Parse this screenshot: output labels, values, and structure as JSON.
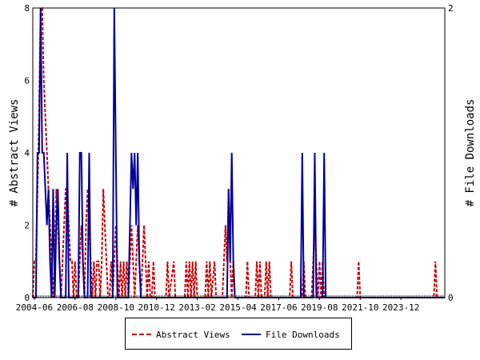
{
  "chart_data": {
    "type": "line",
    "xlabel": "",
    "ylabel_left": "# Abstract Views",
    "ylabel_right": "# File Downloads",
    "ylim_left": [
      0,
      8
    ],
    "ylim_right": [
      0,
      2
    ],
    "x_tick_labels": [
      "2004-06",
      "2006-08",
      "2008-10",
      "2010-12",
      "2013-02",
      "2015-04",
      "2017-06",
      "2019-08",
      "2021-10",
      "2023-12"
    ],
    "y_left_ticks": [
      "0",
      "2",
      "4",
      "6",
      "8"
    ],
    "y_right_ticks": [
      "0",
      "2"
    ],
    "grid": false,
    "legend_position": "bottom-center",
    "x_start": "2004-05",
    "x_end": "2026-04",
    "series": [
      {
        "name": "Abstract Views",
        "axis": "left",
        "style": "dashed",
        "color": "#cc0000",
        "points": [
          [
            "2004-05",
            0
          ],
          [
            "2004-06",
            1
          ],
          [
            "2004-07",
            1
          ],
          [
            "2004-08",
            3
          ],
          [
            "2004-09",
            5
          ],
          [
            "2004-10",
            8
          ],
          [
            "2004-11",
            8
          ],
          [
            "2004-12",
            6
          ],
          [
            "2005-01",
            5
          ],
          [
            "2005-02",
            4
          ],
          [
            "2005-03",
            3
          ],
          [
            "2005-04",
            2
          ],
          [
            "2005-05",
            1
          ],
          [
            "2005-06",
            0
          ],
          [
            "2005-07",
            1
          ],
          [
            "2005-08",
            3
          ],
          [
            "2005-09",
            2
          ],
          [
            "2005-10",
            1
          ],
          [
            "2005-11",
            0
          ],
          [
            "2005-12",
            1
          ],
          [
            "2006-01",
            2
          ],
          [
            "2006-02",
            3
          ],
          [
            "2006-03",
            3
          ],
          [
            "2006-04",
            2
          ],
          [
            "2006-05",
            1
          ],
          [
            "2006-06",
            1
          ],
          [
            "2006-07",
            0
          ],
          [
            "2006-08",
            1
          ],
          [
            "2006-09",
            0
          ],
          [
            "2006-10",
            0
          ],
          [
            "2006-11",
            1
          ],
          [
            "2006-12",
            2
          ],
          [
            "2007-01",
            1
          ],
          [
            "2007-02",
            0
          ],
          [
            "2007-03",
            2
          ],
          [
            "2007-04",
            3
          ],
          [
            "2007-05",
            2
          ],
          [
            "2007-06",
            1
          ],
          [
            "2007-07",
            0
          ],
          [
            "2007-08",
            1
          ],
          [
            "2007-09",
            0
          ],
          [
            "2007-10",
            1
          ],
          [
            "2007-11",
            1
          ],
          [
            "2007-12",
            0
          ],
          [
            "2008-01",
            1
          ],
          [
            "2008-02",
            3
          ],
          [
            "2008-03",
            2
          ],
          [
            "2008-04",
            1
          ],
          [
            "2008-05",
            0
          ],
          [
            "2008-06",
            0
          ],
          [
            "2008-07",
            1
          ],
          [
            "2008-08",
            0
          ],
          [
            "2008-09",
            1
          ],
          [
            "2008-10",
            2
          ],
          [
            "2008-11",
            1
          ],
          [
            "2008-12",
            0
          ],
          [
            "2009-01",
            1
          ],
          [
            "2009-02",
            0
          ],
          [
            "2009-03",
            1
          ],
          [
            "2009-04",
            0
          ],
          [
            "2009-05",
            1
          ],
          [
            "2009-06",
            0
          ],
          [
            "2009-07",
            1
          ],
          [
            "2009-08",
            2
          ],
          [
            "2009-09",
            1
          ],
          [
            "2009-10",
            0
          ],
          [
            "2009-11",
            1
          ],
          [
            "2009-12",
            2
          ],
          [
            "2010-01",
            1
          ],
          [
            "2010-02",
            0
          ],
          [
            "2010-03",
            1
          ],
          [
            "2010-04",
            2
          ],
          [
            "2010-05",
            1
          ],
          [
            "2010-06",
            0
          ],
          [
            "2010-07",
            1
          ],
          [
            "2010-08",
            0
          ],
          [
            "2010-09",
            0
          ],
          [
            "2010-10",
            1
          ],
          [
            "2010-11",
            0
          ],
          [
            "2010-12",
            0
          ],
          [
            "2011-06",
            0
          ],
          [
            "2011-07",
            1
          ],
          [
            "2011-08",
            0
          ],
          [
            "2011-11",
            1
          ],
          [
            "2011-12",
            0
          ],
          [
            "2012-06",
            0
          ],
          [
            "2012-07",
            1
          ],
          [
            "2012-08",
            0
          ],
          [
            "2012-09",
            1
          ],
          [
            "2012-10",
            0
          ],
          [
            "2012-11",
            1
          ],
          [
            "2012-12",
            0
          ],
          [
            "2013-01",
            1
          ],
          [
            "2013-02",
            0
          ],
          [
            "2013-07",
            0
          ],
          [
            "2013-08",
            1
          ],
          [
            "2013-09",
            0
          ],
          [
            "2013-10",
            1
          ],
          [
            "2013-11",
            0
          ],
          [
            "2014-01",
            1
          ],
          [
            "2014-02",
            0
          ],
          [
            "2014-06",
            0
          ],
          [
            "2014-07",
            1
          ],
          [
            "2014-08",
            2
          ],
          [
            "2014-09",
            1
          ],
          [
            "2014-10",
            3
          ],
          [
            "2014-11",
            1
          ],
          [
            "2014-12",
            0
          ],
          [
            "2015-01",
            1
          ],
          [
            "2015-02",
            0
          ],
          [
            "2015-09",
            0
          ],
          [
            "2015-10",
            1
          ],
          [
            "2015-11",
            0
          ],
          [
            "2016-03",
            0
          ],
          [
            "2016-04",
            1
          ],
          [
            "2016-05",
            0
          ],
          [
            "2016-06",
            1
          ],
          [
            "2016-07",
            0
          ],
          [
            "2016-09",
            0
          ],
          [
            "2016-10",
            1
          ],
          [
            "2016-11",
            0
          ],
          [
            "2016-12",
            1
          ],
          [
            "2017-01",
            0
          ],
          [
            "2018-01",
            0
          ],
          [
            "2018-02",
            1
          ],
          [
            "2018-03",
            0
          ],
          [
            "2018-09",
            0
          ],
          [
            "2018-10",
            1
          ],
          [
            "2018-11",
            0
          ],
          [
            "2019-03",
            0
          ],
          [
            "2019-04",
            1
          ],
          [
            "2019-05",
            2
          ],
          [
            "2019-06",
            1
          ],
          [
            "2019-07",
            0
          ],
          [
            "2019-08",
            1
          ],
          [
            "2019-09",
            0
          ],
          [
            "2019-10",
            1
          ],
          [
            "2019-11",
            0
          ],
          [
            "2021-08",
            0
          ],
          [
            "2021-09",
            1
          ],
          [
            "2021-10",
            0
          ],
          [
            "2025-09",
            0
          ],
          [
            "2025-10",
            1
          ],
          [
            "2025-11",
            0
          ],
          [
            "2026-04",
            0
          ]
        ]
      },
      {
        "name": "File Downloads",
        "axis": "right",
        "style": "solid",
        "color": "#000099",
        "points": [
          [
            "2004-05",
            0
          ],
          [
            "2004-07",
            0
          ],
          [
            "2004-08",
            1
          ],
          [
            "2004-09",
            1
          ],
          [
            "2004-10",
            2
          ],
          [
            "2004-11",
            1
          ],
          [
            "2004-12",
            1
          ],
          [
            "2005-01",
            0.75
          ],
          [
            "2005-02",
            0.5
          ],
          [
            "2005-03",
            0.75
          ],
          [
            "2005-04",
            0.25
          ],
          [
            "2005-05",
            0
          ],
          [
            "2005-06",
            0.75
          ],
          [
            "2005-07",
            0
          ],
          [
            "2005-08",
            0.5
          ],
          [
            "2005-09",
            0.75
          ],
          [
            "2005-10",
            0.25
          ],
          [
            "2005-11",
            0
          ],
          [
            "2006-02",
            0
          ],
          [
            "2006-03",
            1
          ],
          [
            "2006-04",
            0
          ],
          [
            "2006-10",
            0
          ],
          [
            "2006-11",
            1
          ],
          [
            "2006-12",
            1
          ],
          [
            "2007-01",
            0.25
          ],
          [
            "2007-02",
            0
          ],
          [
            "2007-04",
            0
          ],
          [
            "2007-05",
            1
          ],
          [
            "2007-06",
            0
          ],
          [
            "2008-08",
            0
          ],
          [
            "2008-09",
            2
          ],
          [
            "2008-10",
            1
          ],
          [
            "2008-11",
            0
          ],
          [
            "2009-06",
            0
          ],
          [
            "2009-07",
            0.5
          ],
          [
            "2009-08",
            1
          ],
          [
            "2009-09",
            0.75
          ],
          [
            "2009-10",
            1
          ],
          [
            "2009-11",
            0.5
          ],
          [
            "2009-12",
            1
          ],
          [
            "2010-01",
            0.25
          ],
          [
            "2010-02",
            0
          ],
          [
            "2014-09",
            0
          ],
          [
            "2014-10",
            0.75
          ],
          [
            "2014-11",
            0.25
          ],
          [
            "2014-12",
            1
          ],
          [
            "2015-01",
            0.25
          ],
          [
            "2015-02",
            0
          ],
          [
            "2018-08",
            0
          ],
          [
            "2018-09",
            1
          ],
          [
            "2018-10",
            0
          ],
          [
            "2019-04",
            0
          ],
          [
            "2019-05",
            1
          ],
          [
            "2019-06",
            0
          ],
          [
            "2019-10",
            0
          ],
          [
            "2019-11",
            1
          ],
          [
            "2019-12",
            0
          ],
          [
            "2026-04",
            0
          ]
        ]
      }
    ]
  }
}
